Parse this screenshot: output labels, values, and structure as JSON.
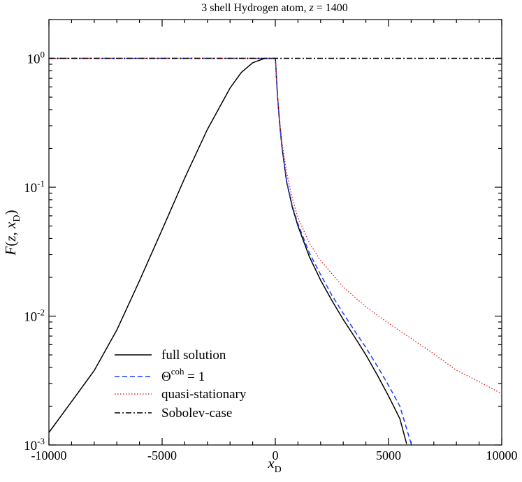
{
  "chart_data": {
    "type": "line",
    "title_parts": [
      "3 shell Hydrogen atom, ",
      "z",
      " = 1400"
    ],
    "xlabel": "x",
    "xlabel_sub": "D",
    "ylabel_parts": [
      "F(",
      "z",
      ", ",
      "x",
      "D",
      ")"
    ],
    "xlim": [
      -10000,
      10000
    ],
    "ylim": [
      0.001,
      2
    ],
    "yscale": "log",
    "x_ticks": [
      -10000,
      -5000,
      0,
      5000,
      10000
    ],
    "x_tick_labels": [
      "-10000",
      "-5000",
      "0",
      "5000",
      "10000"
    ],
    "y_ticks": [
      0.001,
      0.01,
      0.1,
      1
    ],
    "y_tick_exponents": [
      "-3",
      "-2",
      "-1",
      "0"
    ],
    "y_tick_base": "10",
    "grid": false,
    "legend_position": "bottom-left",
    "series": [
      {
        "name": "full solution",
        "color": "#000000",
        "dash": "solid",
        "x": [
          -10000,
          -9000,
          -8000,
          -7000,
          -6000,
          -5000,
          -4000,
          -3000,
          -2000,
          -1500,
          -1000,
          -500,
          -100,
          0,
          20,
          50,
          100,
          200,
          300,
          500,
          750,
          1000,
          1500,
          2000,
          2500,
          3000,
          3500,
          4000,
          4500,
          5000,
          5500,
          5800
        ],
        "y": [
          0.00125,
          0.00217,
          0.00378,
          0.0078,
          0.0188,
          0.0468,
          0.118,
          0.281,
          0.588,
          0.778,
          0.925,
          0.996,
          1.0,
          1.0,
          0.9,
          0.7,
          0.5,
          0.3,
          0.2,
          0.11,
          0.07,
          0.05,
          0.029,
          0.019,
          0.0132,
          0.0094,
          0.0069,
          0.005,
          0.0035,
          0.0024,
          0.0016,
          0.00102
        ]
      },
      {
        "name_parts": [
          "Θ",
          "coh",
          " = 1"
        ],
        "color": "#1f3fff",
        "dash": "dashed",
        "x": [
          -10000,
          -5000,
          -1000,
          0,
          20,
          50,
          100,
          200,
          300,
          500,
          750,
          1000,
          1500,
          2000,
          2500,
          3000,
          3500,
          4000,
          4500,
          5000,
          5500,
          6000
        ],
        "y": [
          1.0,
          1.0,
          1.0,
          1.0,
          0.9,
          0.7,
          0.5,
          0.3,
          0.2,
          0.112,
          0.072,
          0.052,
          0.031,
          0.021,
          0.0145,
          0.0105,
          0.0077,
          0.0057,
          0.0041,
          0.0029,
          0.002,
          0.00102
        ]
      },
      {
        "name": "quasi-stationary",
        "color": "#e8261f",
        "dash": "dotted",
        "x": [
          -10000,
          -5000,
          -1000,
          0,
          20,
          50,
          100,
          200,
          300,
          500,
          750,
          1000,
          1500,
          2000,
          3000,
          4000,
          5000,
          6000,
          7000,
          8000,
          9000,
          10000
        ],
        "y": [
          1.0,
          1.0,
          1.0,
          1.0,
          0.9,
          0.72,
          0.52,
          0.32,
          0.22,
          0.13,
          0.082,
          0.058,
          0.037,
          0.027,
          0.0168,
          0.0118,
          0.0088,
          0.0067,
          0.0051,
          0.0038,
          0.0031,
          0.0025
        ]
      },
      {
        "name": "Sobolev-case",
        "color": "#000000",
        "dash": "dashdot",
        "x": [
          -10000,
          10000
        ],
        "y": [
          1.0,
          1.0
        ]
      }
    ]
  }
}
